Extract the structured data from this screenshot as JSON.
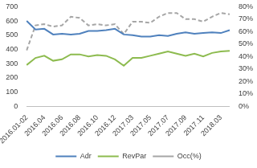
{
  "chart_data": {
    "type": "line",
    "categories": [
      "2016.01-02",
      null,
      "2016.04",
      null,
      "2016.06",
      null,
      "2016.08",
      null,
      "2016.10",
      null,
      "2016.12",
      null,
      "2017.03",
      null,
      "2017.05",
      null,
      "2017.07",
      null,
      "2017.09",
      null,
      "2017.11",
      null,
      "2018.03",
      null
    ],
    "series": [
      {
        "name": "Adr",
        "color": "#4f81bd",
        "line_style": "solid",
        "values": [
          600,
          540,
          545,
          505,
          510,
          505,
          510,
          530,
          530,
          535,
          545,
          505,
          500,
          490,
          490,
          500,
          495,
          510,
          520,
          510,
          515,
          520,
          515,
          535
        ]
      },
      {
        "name": "RevPar",
        "color": "#8dbb4f",
        "line_style": "solid",
        "values": [
          290,
          340,
          355,
          320,
          330,
          365,
          365,
          350,
          360,
          355,
          330,
          285,
          340,
          340,
          355,
          370,
          385,
          370,
          355,
          370,
          350,
          375,
          385,
          390
        ]
      },
      {
        "name": "Occ(%)",
        "color": "#a6a6a6",
        "line_style": "dashed",
        "axis": "y2",
        "values": [
          45,
          65,
          66,
          64,
          65,
          72,
          71,
          65,
          66,
          65,
          66,
          58,
          68,
          68,
          67,
          72,
          75,
          75,
          70,
          70,
          68,
          72,
          75,
          74
        ]
      }
    ],
    "ylim": [
      0,
      700
    ],
    "yticks": [
      0,
      100,
      200,
      300,
      400,
      500,
      600,
      700
    ],
    "y2lim": [
      0,
      80
    ],
    "y2ticks": [
      {
        "value": 0,
        "label": "0%"
      },
      {
        "value": 10,
        "label": "10%"
      },
      {
        "value": 20,
        "label": "20%"
      },
      {
        "value": 30,
        "label": "30%"
      },
      {
        "value": 40,
        "label": "40%"
      },
      {
        "value": 50,
        "label": "50%"
      },
      {
        "value": 60,
        "label": "60%"
      },
      {
        "value": 70,
        "label": "70%"
      },
      {
        "value": 80,
        "label": "80%"
      }
    ],
    "grid": false,
    "legend": "bottom"
  }
}
